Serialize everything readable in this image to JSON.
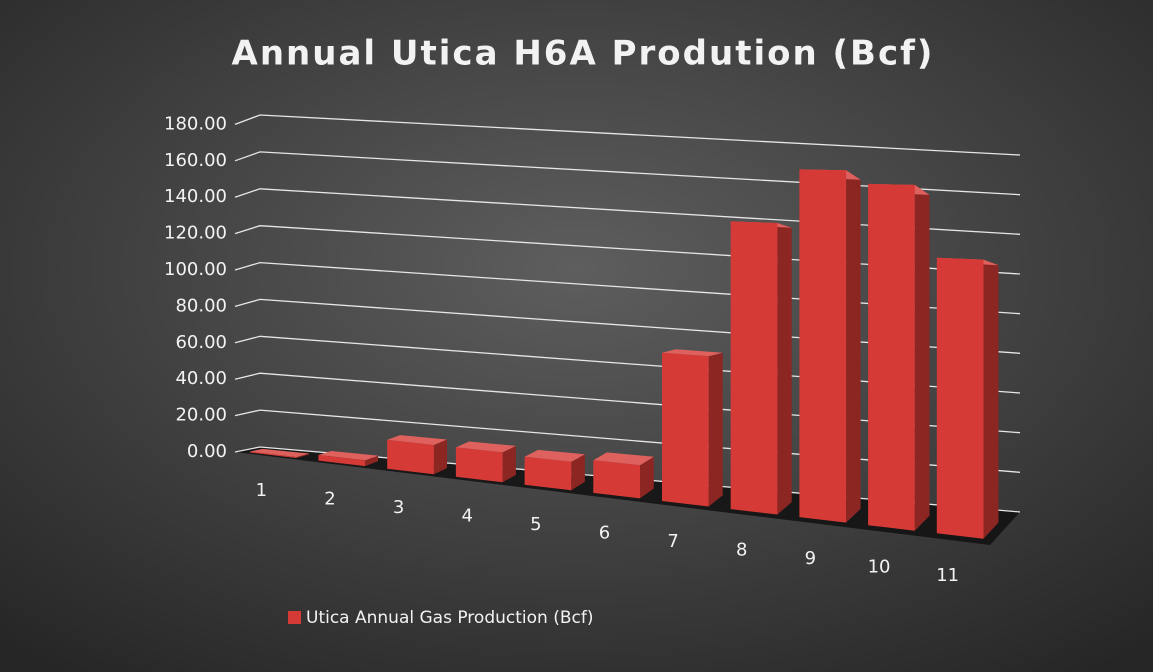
{
  "chart_data": {
    "type": "bar3d",
    "title": "Annual Utica H6A Prodution (Bcf)",
    "categories": [
      "1",
      "2",
      "3",
      "4",
      "5",
      "6",
      "7",
      "8",
      "9",
      "10",
      "11"
    ],
    "series": [
      {
        "name": "Utica Annual Gas Production (Bcf)",
        "color": "#d63a36",
        "values": [
          0.5,
          3,
          15,
          15,
          14,
          16,
          71,
          135,
          160,
          154,
          122
        ]
      }
    ],
    "ylim": [
      0,
      180
    ],
    "yticks": [
      {
        "value": 0,
        "label": "0.00"
      },
      {
        "value": 20,
        "label": "20.00"
      },
      {
        "value": 40,
        "label": "40.00"
      },
      {
        "value": 60,
        "label": "60.00"
      },
      {
        "value": 80,
        "label": "80.00"
      },
      {
        "value": 100,
        "label": "100.00"
      },
      {
        "value": 120,
        "label": "120.00"
      },
      {
        "value": 140,
        "label": "140.00"
      },
      {
        "value": 160,
        "label": "160.00"
      },
      {
        "value": 180,
        "label": "180.00"
      }
    ],
    "grid": true,
    "legend": "bottom-left"
  }
}
